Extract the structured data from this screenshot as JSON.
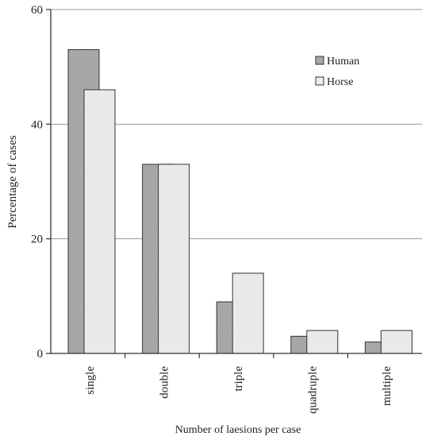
{
  "chart_data": {
    "type": "bar",
    "title": "",
    "xlabel": "Number of laesions per case",
    "ylabel": "Percentage of cases",
    "ylim": [
      0,
      60
    ],
    "yticks": [
      0,
      20,
      40,
      60
    ],
    "grid": true,
    "legend_position": "top-right",
    "categories": [
      "single",
      "double",
      "triple",
      "quadruple",
      "multiple"
    ],
    "series": [
      {
        "name": "Human",
        "values": [
          53,
          33,
          9,
          3,
          2
        ]
      },
      {
        "name": "Horse",
        "values": [
          46,
          33,
          14,
          4,
          4
        ]
      }
    ]
  },
  "colors": {
    "human_fill": "#a9a9a9",
    "horse_fill": "#e9e9e9",
    "axis": "#333333",
    "grid": "#9a9a9a"
  }
}
